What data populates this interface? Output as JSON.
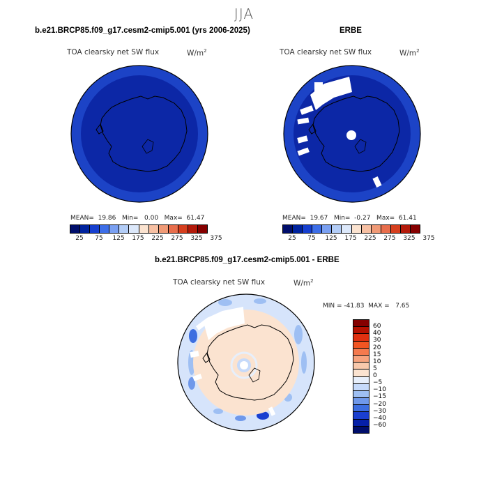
{
  "season": "JJA",
  "panel1": {
    "title": "b.e21.BRCP85.f09_g17.cesm2-cmip5.001 (yrs 2006-2025)",
    "variable": "TOA clearsky net SW flux",
    "units": "W/m",
    "units_exp": "2",
    "stats": "MEAN=  19.86   Min=   0.00   Max=  61.47",
    "colorbar_labels": [
      "25",
      "75",
      "125",
      "175",
      "225",
      "275",
      "325",
      "375"
    ]
  },
  "panel2": {
    "title": "ERBE",
    "variable": "TOA clearsky net SW flux",
    "units": "W/m",
    "units_exp": "2",
    "stats": "MEAN=  19.67   Min=  -0.27   Max=  61.41",
    "colorbar_labels": [
      "25",
      "75",
      "125",
      "175",
      "225",
      "275",
      "325",
      "375"
    ]
  },
  "panel3": {
    "title": "b.e21.BRCP85.f09_g17.cesm2-cmip5.001 - ERBE",
    "variable": "TOA clearsky net SW flux",
    "units": "W/m",
    "units_exp": "2",
    "stats": "MIN = -41.83  MAX =   7.65",
    "colorbar_labels": [
      "60",
      "40",
      "30",
      "20",
      "15",
      "10",
      "5",
      "0",
      "−5",
      "−10",
      "−15",
      "−20",
      "−30",
      "−40",
      "−60"
    ]
  },
  "colors": {
    "abs_scale": [
      "#000e6b",
      "#00239e",
      "#163fcf",
      "#3d6ee8",
      "#7aa0f2",
      "#b3cdf7",
      "#dce8fa",
      "#fbe3d0",
      "#f7c0a3",
      "#f09a76",
      "#e86e4c",
      "#d63f1e",
      "#b31a0a",
      "#850000"
    ],
    "diff_scale": [
      "#850000",
      "#b51000",
      "#e03010",
      "#f25522",
      "#f57a4e",
      "#f7a37e",
      "#f9c9ac",
      "#fbe3d0",
      "#e7effb",
      "#c6dafa",
      "#9ebff3",
      "#6f98ea",
      "#3d6ee0",
      "#1a3fd0",
      "#0520a8",
      "#000e6b"
    ],
    "map_fill": "#0c27a6",
    "map_rim": "#1c43c6"
  }
}
